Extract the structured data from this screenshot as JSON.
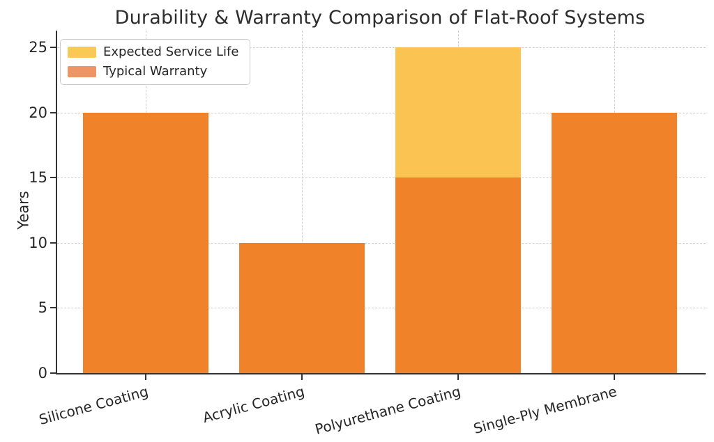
{
  "chart_data": {
    "type": "bar",
    "title": "Durability & Warranty Comparison of Flat-Roof Systems",
    "xlabel": "",
    "ylabel": "Years",
    "categories": [
      "Silicone Coating",
      "Acrylic Coating",
      "Polyurethane Coating",
      "Single-Ply Membrane"
    ],
    "series": [
      {
        "name": "Expected Service Life",
        "color": "#FBC351",
        "legend_color": "#FAC855",
        "values": [
          20,
          10,
          25,
          20
        ]
      },
      {
        "name": "Typical Warranty",
        "color": "#F0822A",
        "legend_color": "#EF9464",
        "values": [
          20,
          10,
          15,
          20
        ]
      }
    ],
    "ylim": [
      0,
      26.28
    ],
    "yticks": [
      0,
      5,
      10,
      15,
      20,
      25
    ],
    "grid": "dashed, both axes",
    "legend_position": "upper left",
    "bar_style": "overlay (Typical Warranty drawn in front of Expected Service Life)",
    "x_tick_label_rotation_deg": 15
  },
  "style_colors": {
    "grid": "#cfcfcf",
    "spine": "#333333",
    "text": "#262626",
    "background": "#ffffff"
  }
}
